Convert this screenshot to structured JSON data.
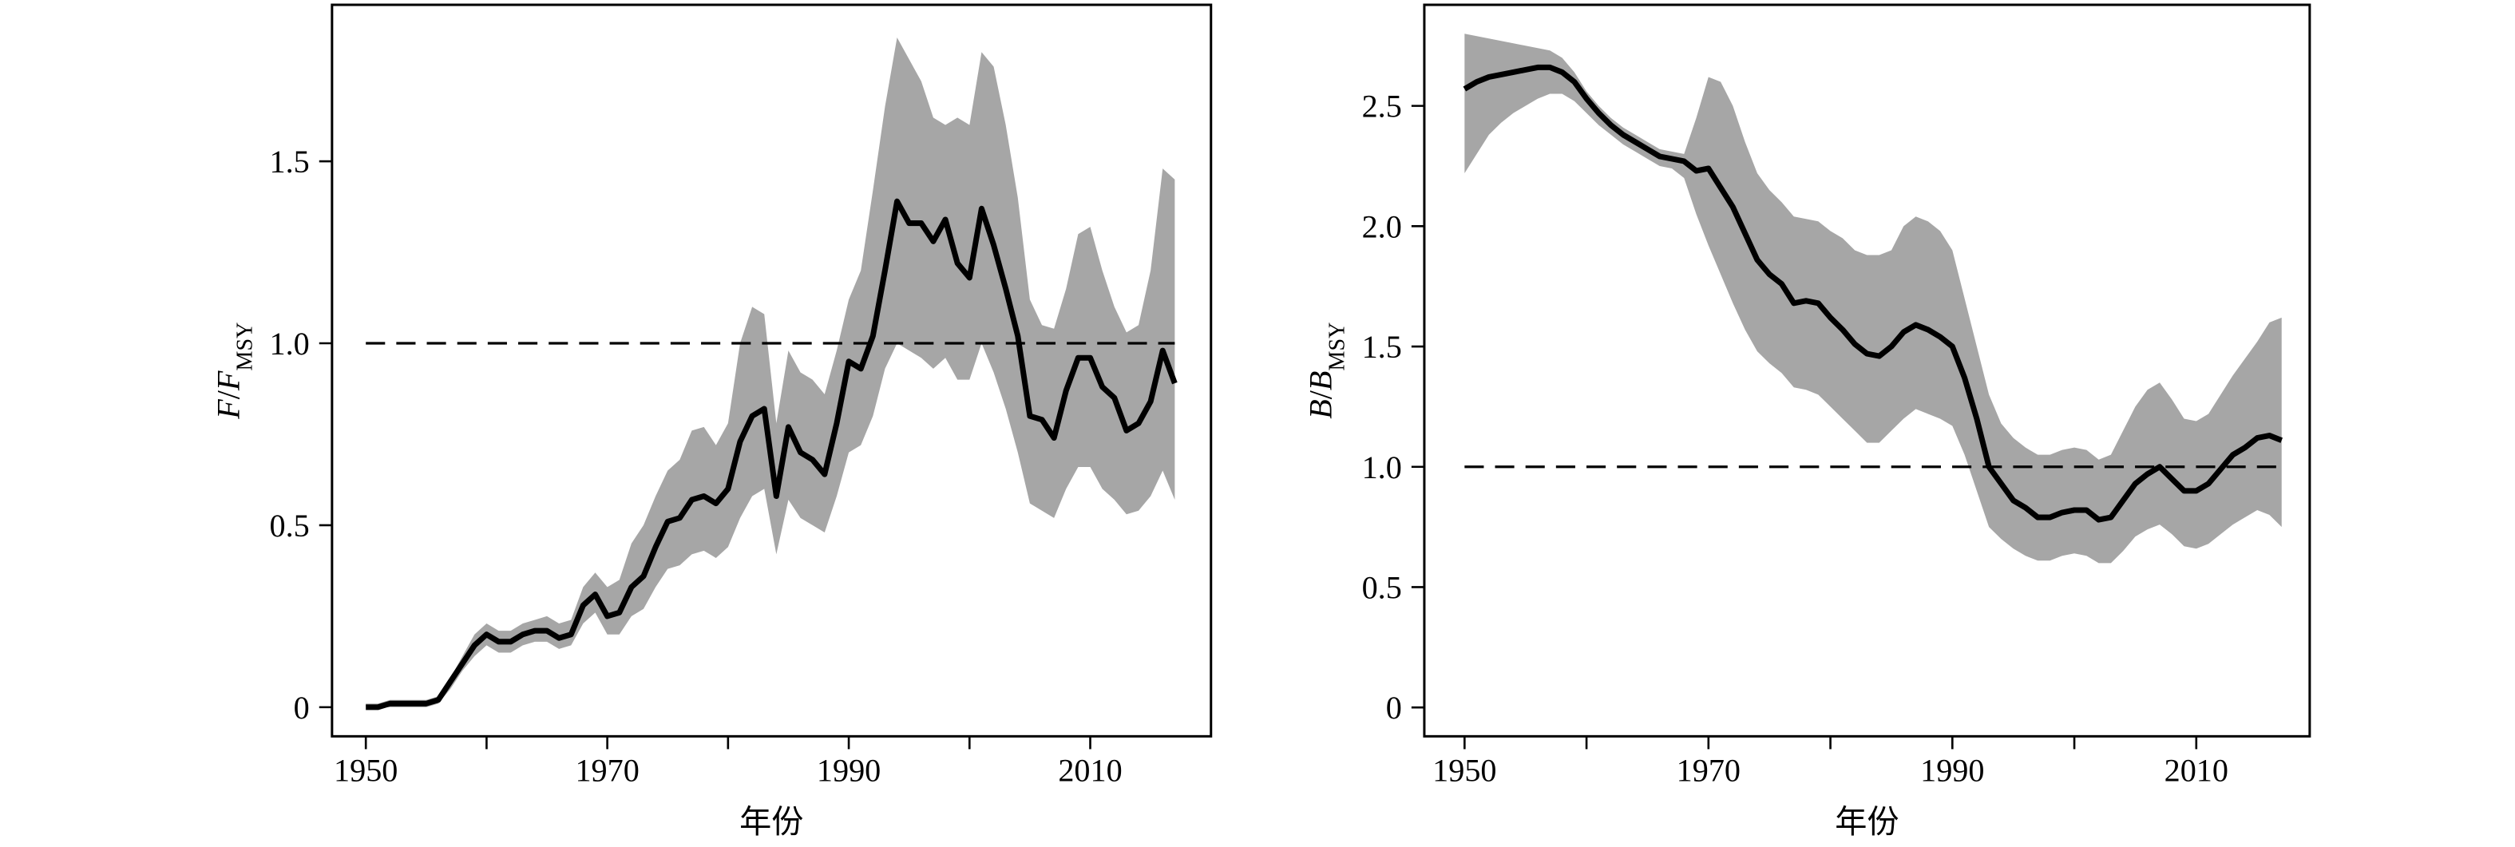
{
  "chart_data": [
    {
      "type": "line",
      "ylabel": [
        "F",
        "/",
        "F",
        "MSY"
      ],
      "xlabel": "年份",
      "xlim": [
        1947.2,
        2020
      ],
      "ylim": [
        -0.08,
        1.93
      ],
      "xticks": [
        1950,
        1970,
        1990,
        2010
      ],
      "xminor": [
        1960,
        1980,
        2000
      ],
      "yticks": [
        0,
        0.5,
        {
          "value": 1,
          "label": "1.0"
        },
        1.5
      ],
      "hline": 1,
      "x": [
        1950,
        1951,
        1952,
        1953,
        1954,
        1955,
        1956,
        1957,
        1958,
        1959,
        1960,
        1961,
        1962,
        1963,
        1964,
        1965,
        1966,
        1967,
        1968,
        1969,
        1970,
        1971,
        1972,
        1973,
        1974,
        1975,
        1976,
        1977,
        1978,
        1979,
        1980,
        1981,
        1982,
        1983,
        1984,
        1985,
        1986,
        1987,
        1988,
        1989,
        1990,
        1991,
        1992,
        1993,
        1994,
        1995,
        1996,
        1997,
        1998,
        1999,
        2000,
        2001,
        2002,
        2003,
        2004,
        2005,
        2006,
        2007,
        2008,
        2009,
        2010,
        2011,
        2012,
        2013,
        2014,
        2015,
        2016,
        2017
      ],
      "color": "#000000",
      "values": [
        0,
        0,
        0.01,
        0.01,
        0.01,
        0.01,
        0.02,
        0.07,
        0.12,
        0.17,
        0.2,
        0.18,
        0.18,
        0.2,
        0.21,
        0.21,
        0.19,
        0.2,
        0.28,
        0.31,
        0.25,
        0.26,
        0.33,
        0.36,
        0.44,
        0.51,
        0.52,
        0.57,
        0.58,
        0.56,
        0.6,
        0.73,
        0.8,
        0.82,
        0.58,
        0.77,
        0.7,
        0.68,
        0.64,
        0.78,
        0.95,
        0.93,
        1.02,
        1.2,
        1.39,
        1.33,
        1.33,
        1.28,
        1.34,
        1.22,
        1.18,
        1.37,
        1.27,
        1.15,
        1.02,
        0.8,
        0.79,
        0.74,
        0.87,
        0.96,
        0.96,
        0.88,
        0.85,
        0.76,
        0.78,
        0.84,
        0.98,
        0.89
      ],
      "band": {
        "color": "#a6a6a6",
        "upper": [
          0.01,
          0.01,
          0.02,
          0.02,
          0.02,
          0.02,
          0.03,
          0.08,
          0.14,
          0.2,
          0.23,
          0.21,
          0.21,
          0.23,
          0.24,
          0.25,
          0.23,
          0.24,
          0.33,
          0.37,
          0.33,
          0.35,
          0.45,
          0.5,
          0.58,
          0.65,
          0.68,
          0.76,
          0.77,
          0.72,
          0.78,
          1.0,
          1.1,
          1.08,
          0.78,
          0.98,
          0.92,
          0.9,
          0.86,
          0.98,
          1.12,
          1.2,
          1.42,
          1.65,
          1.84,
          1.78,
          1.72,
          1.62,
          1.6,
          1.62,
          1.6,
          1.8,
          1.76,
          1.6,
          1.4,
          1.12,
          1.05,
          1.04,
          1.15,
          1.3,
          1.32,
          1.2,
          1.1,
          1.03,
          1.05,
          1.2,
          1.48,
          1.45
        ],
        "lower": [
          0,
          0,
          0,
          0,
          0,
          0,
          0.01,
          0.05,
          0.1,
          0.14,
          0.17,
          0.15,
          0.15,
          0.17,
          0.18,
          0.18,
          0.16,
          0.17,
          0.23,
          0.26,
          0.2,
          0.2,
          0.25,
          0.27,
          0.33,
          0.38,
          0.39,
          0.42,
          0.43,
          0.41,
          0.44,
          0.52,
          0.58,
          0.6,
          0.42,
          0.57,
          0.52,
          0.5,
          0.48,
          0.58,
          0.7,
          0.72,
          0.8,
          0.93,
          1.0,
          0.98,
          0.96,
          0.93,
          0.96,
          0.9,
          0.9,
          1.0,
          0.92,
          0.82,
          0.7,
          0.56,
          0.54,
          0.52,
          0.6,
          0.66,
          0.66,
          0.6,
          0.57,
          0.53,
          0.54,
          0.58,
          0.65,
          0.57
        ]
      }
    },
    {
      "type": "line",
      "ylabel": [
        "B",
        "/",
        "B",
        "MSY"
      ],
      "xlabel": "年份",
      "xlim": [
        1946.7,
        2019.3
      ],
      "ylim": [
        -0.12,
        2.92
      ],
      "xticks": [
        1950,
        1970,
        1990,
        2010
      ],
      "xminor": [
        1960,
        1980,
        2000
      ],
      "yticks": [
        0,
        0.5,
        {
          "value": 1,
          "label": "1.0"
        },
        1.5,
        {
          "value": 2,
          "label": "2.0"
        },
        2.5
      ],
      "hline": 1,
      "x": [
        1950,
        1951,
        1952,
        1953,
        1954,
        1955,
        1956,
        1957,
        1958,
        1959,
        1960,
        1961,
        1962,
        1963,
        1964,
        1965,
        1966,
        1967,
        1968,
        1969,
        1970,
        1971,
        1972,
        1973,
        1974,
        1975,
        1976,
        1977,
        1978,
        1979,
        1980,
        1981,
        1982,
        1983,
        1984,
        1985,
        1986,
        1987,
        1988,
        1989,
        1990,
        1991,
        1992,
        1993,
        1994,
        1995,
        1996,
        1997,
        1998,
        1999,
        2000,
        2001,
        2002,
        2003,
        2004,
        2005,
        2006,
        2007,
        2008,
        2009,
        2010,
        2011,
        2012,
        2013,
        2014,
        2015,
        2016,
        2017
      ],
      "color": "#000000",
      "values": [
        2.57,
        2.6,
        2.62,
        2.63,
        2.64,
        2.65,
        2.66,
        2.66,
        2.64,
        2.6,
        2.53,
        2.47,
        2.42,
        2.38,
        2.35,
        2.32,
        2.29,
        2.28,
        2.27,
        2.23,
        2.24,
        2.16,
        2.08,
        1.97,
        1.86,
        1.8,
        1.76,
        1.68,
        1.69,
        1.68,
        1.62,
        1.57,
        1.51,
        1.47,
        1.46,
        1.5,
        1.56,
        1.59,
        1.57,
        1.54,
        1.5,
        1.37,
        1.2,
        1.0,
        0.93,
        0.86,
        0.83,
        0.79,
        0.79,
        0.81,
        0.82,
        0.82,
        0.78,
        0.79,
        0.86,
        0.93,
        0.97,
        1.0,
        0.95,
        0.9,
        0.9,
        0.93,
        0.99,
        1.05,
        1.08,
        1.12,
        1.13,
        1.11
      ],
      "band": {
        "color": "#a6a6a6",
        "upper": [
          2.8,
          2.79,
          2.78,
          2.77,
          2.76,
          2.75,
          2.74,
          2.73,
          2.7,
          2.64,
          2.56,
          2.5,
          2.45,
          2.41,
          2.38,
          2.35,
          2.32,
          2.31,
          2.3,
          2.45,
          2.62,
          2.6,
          2.5,
          2.35,
          2.22,
          2.15,
          2.1,
          2.04,
          2.03,
          2.02,
          1.98,
          1.95,
          1.9,
          1.88,
          1.88,
          1.9,
          2.0,
          2.04,
          2.02,
          1.98,
          1.9,
          1.7,
          1.5,
          1.3,
          1.18,
          1.12,
          1.08,
          1.05,
          1.05,
          1.07,
          1.08,
          1.07,
          1.03,
          1.05,
          1.15,
          1.25,
          1.32,
          1.35,
          1.28,
          1.2,
          1.19,
          1.22,
          1.3,
          1.38,
          1.45,
          1.52,
          1.6,
          1.62
        ],
        "lower": [
          2.22,
          2.3,
          2.38,
          2.43,
          2.47,
          2.5,
          2.53,
          2.55,
          2.55,
          2.52,
          2.47,
          2.42,
          2.38,
          2.34,
          2.31,
          2.28,
          2.25,
          2.24,
          2.2,
          2.05,
          1.92,
          1.8,
          1.68,
          1.57,
          1.48,
          1.43,
          1.39,
          1.33,
          1.32,
          1.3,
          1.25,
          1.2,
          1.15,
          1.1,
          1.1,
          1.15,
          1.2,
          1.24,
          1.22,
          1.2,
          1.17,
          1.05,
          0.9,
          0.75,
          0.7,
          0.66,
          0.63,
          0.61,
          0.61,
          0.63,
          0.64,
          0.63,
          0.6,
          0.6,
          0.65,
          0.71,
          0.74,
          0.76,
          0.72,
          0.67,
          0.66,
          0.68,
          0.72,
          0.76,
          0.79,
          0.82,
          0.8,
          0.75
        ]
      }
    }
  ]
}
